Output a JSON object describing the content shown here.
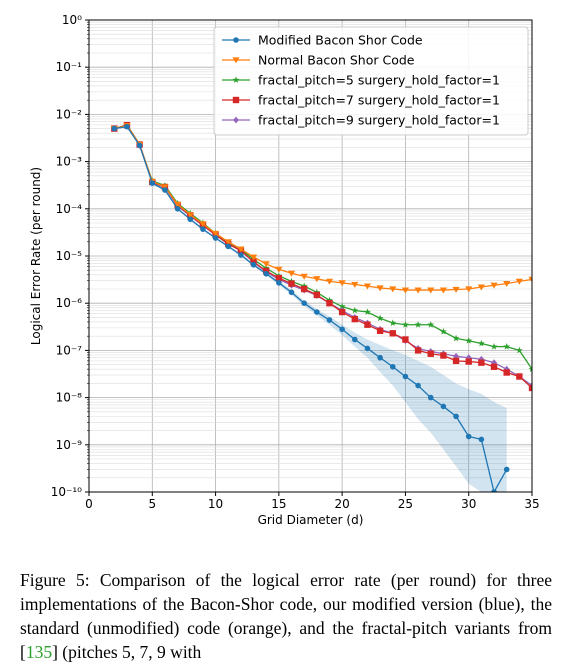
{
  "chart_data": {
    "type": "line",
    "xlabel": "Grid Diameter (d)",
    "ylabel": "Logical Error Rate (per round)",
    "xlim": [
      0,
      35
    ],
    "ylim_log10": [
      -10,
      0
    ],
    "y_scale": "log",
    "x_ticks": [
      0,
      5,
      10,
      15,
      20,
      25,
      30,
      35
    ],
    "y_ticks_exp": [
      0,
      -1,
      -2,
      -3,
      -4,
      -5,
      -6,
      -7,
      -8,
      -9,
      -10
    ],
    "grid": true,
    "legend_position": "top-right",
    "series": [
      {
        "name": "Modified Bacon Shor Code",
        "color": "#1f77b4",
        "marker": "circle",
        "x": [
          2,
          3,
          4,
          5,
          6,
          7,
          8,
          9,
          10,
          11,
          12,
          13,
          14,
          15,
          16,
          17,
          18,
          19,
          20,
          21,
          22,
          23,
          24,
          25,
          26,
          27,
          28,
          29,
          30,
          31,
          32,
          33
        ],
        "y": [
          0.005,
          0.0055,
          0.0022,
          0.00035,
          0.00025,
          0.0001,
          6e-05,
          3.7e-05,
          2.4e-05,
          1.6e-05,
          1.05e-05,
          6.5e-06,
          4.2e-06,
          2.7e-06,
          1.7e-06,
          1e-06,
          6.5e-07,
          4.4e-07,
          2.8e-07,
          1.7e-07,
          1.1e-07,
          7e-08,
          4.5e-08,
          2.8e-08,
          1.8e-08,
          1e-08,
          6.5e-09,
          4e-09,
          1.5e-09,
          1.3e-09,
          1e-10,
          3e-10
        ],
        "band_low": [
          0.0048,
          0.0053,
          0.0021,
          0.00033,
          0.00024,
          9.5e-05,
          5.7e-05,
          3.5e-05,
          2.3e-05,
          1.5e-05,
          9.8e-06,
          6e-06,
          3.9e-06,
          2.45e-06,
          1.5e-06,
          8.8e-07,
          5.5e-07,
          3.5e-07,
          2.1e-07,
          1.2e-07,
          7e-08,
          3.5e-08,
          1.8e-08,
          8e-09,
          3.5e-09,
          1.8e-09,
          8e-10,
          3.5e-10,
          1.5e-10,
          1e-10,
          1e-10,
          1e-10
        ],
        "band_high": [
          0.0052,
          0.0057,
          0.0023,
          0.00037,
          0.00026,
          0.000105,
          6.3e-05,
          3.9e-05,
          2.5e-05,
          1.7e-05,
          1.12e-05,
          7e-06,
          4.5e-06,
          3e-06,
          1.9e-06,
          1.15e-06,
          7.5e-07,
          5.3e-07,
          3.5e-07,
          2.4e-07,
          1.7e-07,
          1.3e-07,
          1e-07,
          8e-08,
          6e-08,
          4.5e-08,
          3e-08,
          2e-08,
          1.5e-08,
          1.2e-08,
          8e-09,
          6e-09
        ]
      },
      {
        "name": "Normal Bacon Shor Code",
        "color": "#ff7f0e",
        "marker": "triangle-down",
        "x": [
          2,
          3,
          4,
          5,
          6,
          7,
          8,
          9,
          10,
          11,
          12,
          13,
          14,
          15,
          16,
          17,
          18,
          19,
          20,
          21,
          22,
          23,
          24,
          25,
          26,
          27,
          28,
          29,
          30,
          31,
          32,
          33,
          34,
          35
        ],
        "y": [
          0.005,
          0.0058,
          0.0023,
          0.00038,
          0.00029,
          0.000125,
          7.5e-05,
          4.8e-05,
          3e-05,
          2e-05,
          1.4e-05,
          9.5e-06,
          6.8e-06,
          5.2e-06,
          4.3e-06,
          3.7e-06,
          3.3e-06,
          2.9e-06,
          2.7e-06,
          2.5e-06,
          2.3e-06,
          2.1e-06,
          2e-06,
          1.9e-06,
          1.9e-06,
          1.9e-06,
          1.9e-06,
          1.95e-06,
          2e-06,
          2.2e-06,
          2.4e-06,
          2.6e-06,
          2.9e-06,
          3.2e-06
        ],
        "band_low": [],
        "band_high": []
      },
      {
        "name": "fractal_pitch=5 surgery_hold_factor=1",
        "color": "#2ca02c",
        "marker": "star",
        "x": [
          2,
          3,
          4,
          5,
          6,
          7,
          8,
          9,
          10,
          11,
          12,
          13,
          14,
          15,
          16,
          17,
          18,
          19,
          20,
          21,
          22,
          23,
          24,
          25,
          26,
          27,
          28,
          29,
          30,
          31,
          32,
          33,
          34,
          35
        ],
        "y": [
          0.005,
          0.006,
          0.0023,
          0.00039,
          0.00031,
          0.00013,
          8e-05,
          5e-05,
          3e-05,
          1.9e-05,
          1.35e-05,
          8.5e-06,
          5.5e-06,
          3.8e-06,
          2.9e-06,
          2.3e-06,
          1.7e-06,
          1.15e-06,
          8.5e-07,
          7e-07,
          6.5e-07,
          4.8e-07,
          3.8e-07,
          3.5e-07,
          3.5e-07,
          3.5e-07,
          2.5e-07,
          1.8e-07,
          1.6e-07,
          1.4e-07,
          1.2e-07,
          1.2e-07,
          1e-07,
          4e-08
        ],
        "band_low": [],
        "band_high": []
      },
      {
        "name": "fractal_pitch=7 surgery_hold_factor=1",
        "color": "#d62728",
        "marker": "square",
        "x": [
          2,
          3,
          4,
          5,
          6,
          7,
          8,
          9,
          10,
          11,
          12,
          13,
          14,
          15,
          16,
          17,
          18,
          19,
          20,
          21,
          22,
          23,
          24,
          25,
          26,
          27,
          28,
          29,
          30,
          31,
          32,
          33,
          34,
          35
        ],
        "y": [
          0.005,
          0.0059,
          0.0023,
          0.00037,
          0.00029,
          0.00012,
          7.3e-05,
          4.5e-05,
          2.8e-05,
          1.8e-05,
          1.3e-05,
          7.5e-06,
          4.8e-06,
          3.4e-06,
          2.6e-06,
          2e-06,
          1.5e-06,
          1e-06,
          6.5e-07,
          4.6e-07,
          3.5e-07,
          2.6e-07,
          2.3e-07,
          1.7e-07,
          1e-07,
          8.5e-08,
          7.8e-08,
          6e-08,
          5.8e-08,
          5.5e-08,
          4.5e-08,
          3.4e-08,
          2.8e-08,
          1.6e-08
        ],
        "band_low": [],
        "band_high": []
      },
      {
        "name": "fractal_pitch=9 surgery_hold_factor=1",
        "color": "#9467bd",
        "marker": "diamond",
        "x": [
          2,
          3,
          4,
          5,
          6,
          7,
          8,
          9,
          10,
          11,
          12,
          13,
          14,
          15,
          16,
          17,
          18,
          19,
          20,
          21,
          22,
          23,
          24,
          25,
          26,
          27,
          28,
          29,
          30,
          31,
          32,
          33,
          34,
          35
        ],
        "y": [
          0.005,
          0.0057,
          0.0022,
          0.00036,
          0.00028,
          0.000115,
          7e-05,
          4.4e-05,
          2.8e-05,
          1.8e-05,
          1.3e-05,
          7.5e-06,
          4.6e-06,
          3.2e-06,
          2.4e-06,
          1.9e-06,
          1.45e-06,
          1e-06,
          7e-07,
          5e-07,
          3.8e-07,
          2.8e-07,
          2.3e-07,
          1.6e-07,
          1.1e-07,
          9.5e-08,
          8.5e-08,
          7.5e-08,
          7e-08,
          6.5e-08,
          5.5e-08,
          4e-08,
          2.8e-08,
          1.8e-08
        ],
        "band_low": [],
        "band_high": []
      }
    ]
  },
  "caption": {
    "text_1": "Figure 5: Comparison of the logical error rate (per round) for three implementations of the Bacon-Shor code, our modified version (blue), the standard (unmodified) code (orange), and the fractal-pitch variants from [",
    "ref": "135",
    "text_2": "] (pitches 5, 7, 9 with"
  }
}
